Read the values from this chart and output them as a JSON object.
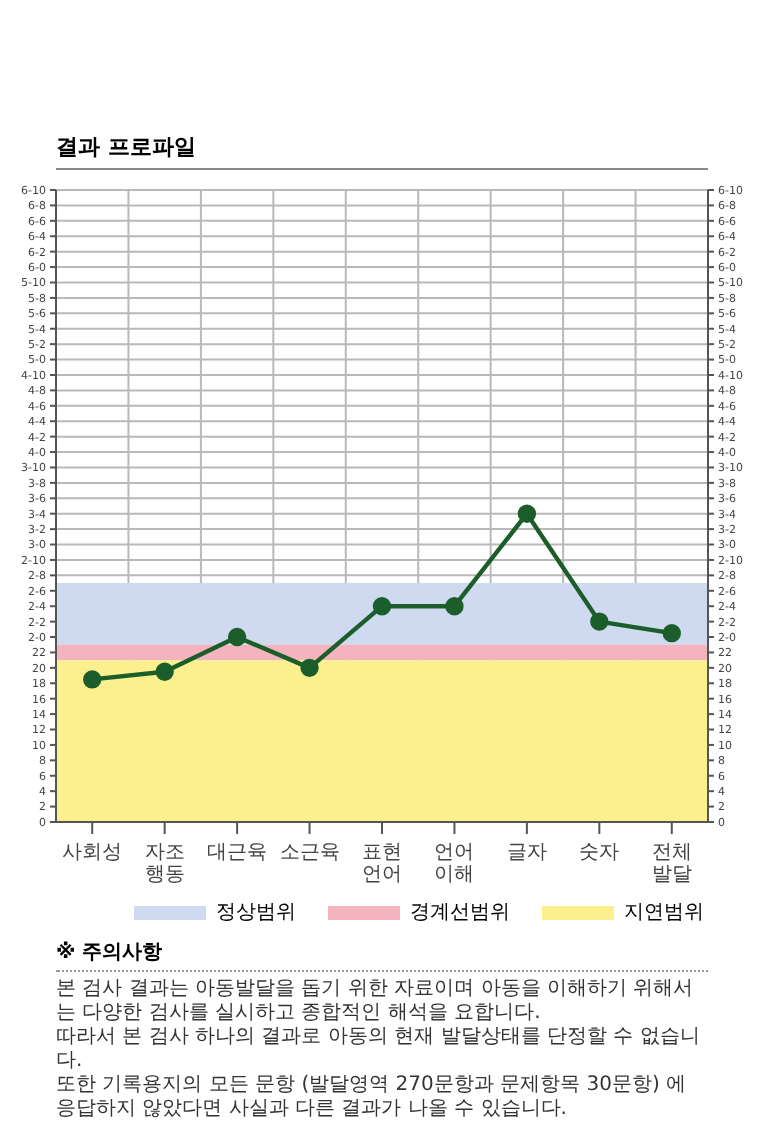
{
  "chart_data": {
    "type": "line",
    "title": "결과 프로파일",
    "categories": [
      "사회성",
      "자조행동",
      "대근육",
      "소근육",
      "표현언어",
      "언어이해",
      "글자",
      "숫자",
      "전체발달"
    ],
    "series": [
      {
        "color": "#1b5e2b",
        "values": [
          18.5,
          19.5,
          24,
          20,
          28,
          28,
          40,
          26,
          24.5
        ]
      }
    ],
    "marker": "circle",
    "grid": true,
    "legend": "bottom",
    "ylim": [
      0,
      82
    ],
    "y2lim": [
      0,
      82
    ],
    "yticks": [
      0,
      2,
      4,
      6,
      8,
      10,
      12,
      14,
      16,
      18,
      20,
      22,
      {
        "value": 24,
        "label": "2-0"
      },
      {
        "value": 26,
        "label": "2-2"
      },
      {
        "value": 28,
        "label": "2-4"
      },
      {
        "value": 30,
        "label": "2-6"
      },
      {
        "value": 32,
        "label": "2-8"
      },
      {
        "value": 34,
        "label": "2-10"
      },
      {
        "value": 36,
        "label": "3-0"
      },
      {
        "value": 38,
        "label": "3-2"
      },
      {
        "value": 40,
        "label": "3-4"
      },
      {
        "value": 42,
        "label": "3-6"
      },
      {
        "value": 44,
        "label": "3-8"
      },
      {
        "value": 46,
        "label": "3-10"
      },
      {
        "value": 48,
        "label": "4-0"
      },
      {
        "value": 50,
        "label": "4-2"
      },
      {
        "value": 52,
        "label": "4-4"
      },
      {
        "value": 54,
        "label": "4-6"
      },
      {
        "value": 56,
        "label": "4-8"
      },
      {
        "value": 58,
        "label": "4-10"
      },
      {
        "value": 60,
        "label": "5-0"
      },
      {
        "value": 62,
        "label": "5-2"
      },
      {
        "value": 64,
        "label": "5-4"
      },
      {
        "value": 66,
        "label": "5-6"
      },
      {
        "value": 68,
        "label": "5-8"
      },
      {
        "value": 70,
        "label": "5-10"
      },
      {
        "value": 72,
        "label": "6-0"
      },
      {
        "value": 74,
        "label": "6-2"
      },
      {
        "value": 76,
        "label": "6-4"
      },
      {
        "value": 78,
        "label": "6-6"
      },
      {
        "value": 80,
        "label": "6-8"
      },
      {
        "value": 82,
        "label": "6-10"
      }
    ],
    "y2ticks": [
      0,
      2,
      4,
      6,
      8,
      10,
      12,
      14,
      16,
      18,
      20,
      22,
      {
        "value": 24,
        "label": "2-0"
      },
      {
        "value": 26,
        "label": "2-2"
      },
      {
        "value": 28,
        "label": "2-4"
      },
      {
        "value": 30,
        "label": "2-6"
      },
      {
        "value": 32,
        "label": "2-8"
      },
      {
        "value": 34,
        "label": "2-10"
      },
      {
        "value": 36,
        "label": "3-0"
      },
      {
        "value": 38,
        "label": "3-2"
      },
      {
        "value": 40,
        "label": "3-4"
      },
      {
        "value": 42,
        "label": "3-6"
      },
      {
        "value": 44,
        "label": "3-8"
      },
      {
        "value": 46,
        "label": "3-10"
      },
      {
        "value": 48,
        "label": "4-0"
      },
      {
        "value": 50,
        "label": "4-2"
      },
      {
        "value": 52,
        "label": "4-4"
      },
      {
        "value": 54,
        "label": "4-6"
      },
      {
        "value": 56,
        "label": "4-8"
      },
      {
        "value": 58,
        "label": "4-10"
      },
      {
        "value": 60,
        "label": "5-0"
      },
      {
        "value": 62,
        "label": "5-2"
      },
      {
        "value": 64,
        "label": "5-4"
      },
      {
        "value": 66,
        "label": "5-6"
      },
      {
        "value": 68,
        "label": "5-8"
      },
      {
        "value": 70,
        "label": "5-10"
      },
      {
        "value": 72,
        "label": "6-0"
      },
      {
        "value": 74,
        "label": "6-2"
      },
      {
        "value": 76,
        "label": "6-4"
      },
      {
        "value": 78,
        "label": "6-6"
      },
      {
        "value": 80,
        "label": "6-8"
      },
      {
        "value": 82,
        "label": "6-10"
      }
    ],
    "bands": [
      {
        "axis": "y",
        "from": 23,
        "to": 31,
        "label": "정상범위",
        "color": "#cfd9ef"
      },
      {
        "axis": "y",
        "from": 21,
        "to": 23,
        "label": "경계선범위",
        "color": "#f3b4be"
      },
      {
        "axis": "y",
        "from": 0,
        "to": 21,
        "label": "지연범위",
        "color": "#fcf08e"
      }
    ],
    "annotations": [
      "※ 주의사항",
      "본 검사 결과는 아동발달을 돕기 위한 자료이며 아동을 이해하기 위해서는 다양한 검사를 실시하고 종합적인 해석을 요합니다.",
      "따라서 본 검사 하나의 결과로 아동의 현재 발달상태를 단정할 수 없습니다.",
      "또한 기록용지의 모든 문항 (발달영역 270문항과 문제항목 30문항) 에 응답하지 않았다면 사실과 다른 결과가 나올 수 있습니다."
    ]
  }
}
